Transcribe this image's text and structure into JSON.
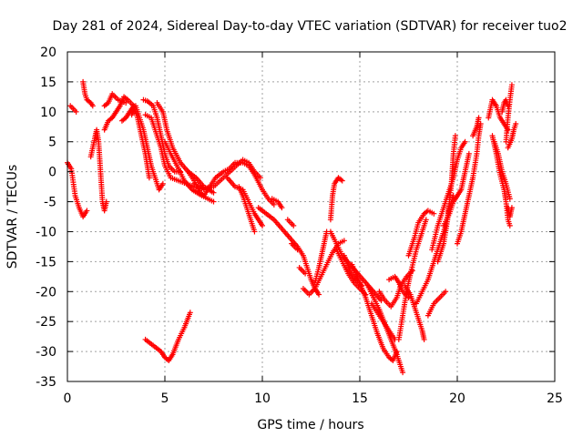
{
  "chart_data": {
    "type": "scatter",
    "title": "Day 281 of 2024, Sidereal Day-to-day VTEC variation (SDTVAR) for receiver tuo2",
    "xlabel": "GPS time / hours",
    "ylabel": "SDTVAR / TECUs",
    "xlim": [
      0,
      25
    ],
    "ylim": [
      -35,
      20
    ],
    "x_ticks": [
      0,
      5,
      10,
      15,
      20,
      25
    ],
    "y_ticks": [
      -35,
      -30,
      -25,
      -20,
      -15,
      -10,
      -5,
      0,
      5,
      10,
      15,
      20
    ],
    "grid": true,
    "marker": "+",
    "color": "#ff0000",
    "tracks": [
      [
        [
          0.0,
          1.5
        ],
        [
          0.2,
          0.5
        ],
        [
          0.4,
          -4.0
        ],
        [
          0.6,
          -6.0
        ],
        [
          0.8,
          -7.5
        ],
        [
          1.0,
          -6.5
        ]
      ],
      [
        [
          0.15,
          11.0
        ],
        [
          0.3,
          10.5
        ],
        [
          0.45,
          10.0
        ]
      ],
      [
        [
          0.8,
          15.0
        ],
        [
          0.9,
          13.0
        ],
        [
          1.0,
          12.0
        ],
        [
          1.2,
          11.5
        ],
        [
          1.3,
          11.0
        ]
      ],
      [
        [
          1.2,
          2.5
        ],
        [
          1.4,
          5.5
        ],
        [
          1.5,
          7.0
        ],
        [
          1.6,
          5.0
        ],
        [
          1.7,
          0.0
        ],
        [
          1.8,
          -5.0
        ],
        [
          1.9,
          -6.5
        ],
        [
          2.0,
          -5.0
        ]
      ],
      [
        [
          1.9,
          7.0
        ],
        [
          2.1,
          8.5
        ],
        [
          2.3,
          9.0
        ],
        [
          2.5,
          10.0
        ],
        [
          2.7,
          11.0
        ],
        [
          2.9,
          12.5
        ],
        [
          3.1,
          12.0
        ],
        [
          3.4,
          11.0
        ]
      ],
      [
        [
          1.9,
          11.0
        ],
        [
          2.1,
          11.5
        ],
        [
          2.3,
          13.0
        ],
        [
          2.6,
          12.0
        ],
        [
          3.0,
          11.5
        ]
      ],
      [
        [
          2.8,
          8.5
        ],
        [
          3.0,
          9.0
        ],
        [
          3.2,
          10.0
        ],
        [
          3.4,
          11.0
        ],
        [
          3.6,
          9.0
        ],
        [
          3.8,
          6.0
        ],
        [
          4.0,
          3.0
        ],
        [
          4.1,
          1.0
        ],
        [
          4.2,
          -1.0
        ]
      ],
      [
        [
          3.3,
          9.5
        ],
        [
          3.5,
          11.0
        ],
        [
          3.7,
          9.0
        ],
        [
          3.9,
          7.0
        ],
        [
          4.1,
          4.0
        ],
        [
          4.3,
          1.0
        ],
        [
          4.5,
          -1.0
        ],
        [
          4.7,
          -3.0
        ],
        [
          4.9,
          -2.0
        ]
      ],
      [
        [
          3.9,
          12.0
        ],
        [
          4.1,
          11.8
        ],
        [
          4.4,
          11.0
        ],
        [
          4.6,
          9.0
        ],
        [
          4.8,
          6.0
        ],
        [
          5.0,
          3.0
        ],
        [
          5.2,
          1.0
        ],
        [
          5.5,
          0.0
        ],
        [
          5.8,
          0.0
        ]
      ],
      [
        [
          4.0,
          9.5
        ],
        [
          4.3,
          9.0
        ],
        [
          4.5,
          7.0
        ],
        [
          4.8,
          4.0
        ],
        [
          5.0,
          1.0
        ],
        [
          5.3,
          -1.0
        ],
        [
          5.7,
          -1.5
        ],
        [
          6.1,
          -2.0
        ],
        [
          6.5,
          -2.5
        ],
        [
          7.0,
          -3.0
        ]
      ],
      [
        [
          4.6,
          11.5
        ],
        [
          4.9,
          10.0
        ],
        [
          5.1,
          7.0
        ],
        [
          5.4,
          4.0
        ],
        [
          5.8,
          1.5
        ],
        [
          6.2,
          0.0
        ],
        [
          6.6,
          -1.0
        ],
        [
          7.0,
          -2.5
        ],
        [
          7.5,
          -3.5
        ]
      ],
      [
        [
          5.0,
          5.0
        ],
        [
          5.3,
          3.0
        ],
        [
          5.7,
          0.5
        ],
        [
          6.0,
          -1.5
        ],
        [
          6.4,
          -3.0
        ],
        [
          6.9,
          -4.0
        ],
        [
          7.5,
          -5.0
        ]
      ],
      [
        [
          4.0,
          -28.0
        ],
        [
          4.4,
          -29.0
        ],
        [
          4.8,
          -30.0
        ],
        [
          5.0,
          -31.0
        ],
        [
          5.2,
          -31.5
        ],
        [
          5.4,
          -30.5
        ],
        [
          5.7,
          -28.0
        ],
        [
          6.0,
          -26.0
        ],
        [
          6.3,
          -23.5
        ]
      ],
      [
        [
          6.2,
          0.0
        ],
        [
          6.5,
          -1.5
        ],
        [
          6.8,
          -3.5
        ],
        [
          7.0,
          -4.0
        ],
        [
          7.3,
          -2.5
        ],
        [
          7.6,
          -1.0
        ],
        [
          8.0,
          0.0
        ],
        [
          8.3,
          0.5
        ],
        [
          8.6,
          1.5
        ],
        [
          9.0,
          1.5
        ],
        [
          9.3,
          1.0
        ],
        [
          9.6,
          -0.5
        ],
        [
          10.0,
          -3.0
        ],
        [
          10.3,
          -4.5
        ],
        [
          10.6,
          -5.5
        ]
      ],
      [
        [
          6.5,
          -2.0
        ],
        [
          7.0,
          -2.8
        ],
        [
          7.5,
          -2.5
        ],
        [
          8.0,
          -1.0
        ],
        [
          8.5,
          0.5
        ],
        [
          9.0,
          2.0
        ],
        [
          9.3,
          1.5
        ],
        [
          9.6,
          0.0
        ],
        [
          9.9,
          -1.0
        ]
      ],
      [
        [
          8.2,
          -1.0
        ],
        [
          8.6,
          -2.5
        ],
        [
          9.0,
          -3.0
        ],
        [
          9.3,
          -5.0
        ],
        [
          9.6,
          -7.0
        ],
        [
          9.8,
          -8.0
        ],
        [
          10.0,
          -9.0
        ]
      ],
      [
        [
          8.8,
          -2.5
        ],
        [
          9.0,
          -4.0
        ],
        [
          9.2,
          -6.0
        ],
        [
          9.4,
          -8.0
        ],
        [
          9.6,
          -10.0
        ]
      ],
      [
        [
          9.8,
          -6.0
        ],
        [
          10.2,
          -7.0
        ],
        [
          10.6,
          -8.0
        ],
        [
          11.0,
          -9.5
        ],
        [
          11.4,
          -11.0
        ],
        [
          11.8,
          -12.5
        ],
        [
          12.1,
          -14.0
        ],
        [
          12.3,
          -16.0
        ],
        [
          12.5,
          -18.0
        ],
        [
          12.7,
          -19.5
        ],
        [
          12.9,
          -20.5
        ]
      ],
      [
        [
          10.5,
          -4.5
        ],
        [
          10.8,
          -5.0
        ],
        [
          11.0,
          -6.0
        ]
      ],
      [
        [
          11.3,
          -8.0
        ],
        [
          11.6,
          -9.0
        ]
      ],
      [
        [
          11.5,
          -12.0
        ],
        [
          11.8,
          -13.0
        ]
      ],
      [
        [
          11.9,
          -16.0
        ],
        [
          12.2,
          -17.0
        ]
      ],
      [
        [
          12.1,
          -19.5
        ],
        [
          12.4,
          -20.5
        ],
        [
          12.7,
          -19.5
        ],
        [
          13.0,
          -17.5
        ],
        [
          13.3,
          -15.5
        ],
        [
          13.6,
          -13.5
        ],
        [
          13.9,
          -12.0
        ],
        [
          14.2,
          -11.5
        ]
      ],
      [
        [
          12.7,
          -18.5
        ],
        [
          12.9,
          -16.0
        ],
        [
          13.1,
          -13.0
        ],
        [
          13.3,
          -10.0
        ]
      ],
      [
        [
          13.5,
          -8.0
        ],
        [
          13.6,
          -4.0
        ],
        [
          13.7,
          -2.0
        ],
        [
          13.9,
          -1.0
        ],
        [
          14.1,
          -1.5
        ]
      ],
      [
        [
          13.5,
          -10.0
        ],
        [
          13.8,
          -12.0
        ],
        [
          14.1,
          -14.0
        ],
        [
          14.5,
          -15.5
        ],
        [
          14.9,
          -17.0
        ],
        [
          15.3,
          -18.5
        ],
        [
          15.7,
          -20.0
        ],
        [
          16.1,
          -21.5
        ]
      ],
      [
        [
          13.8,
          -13.0
        ],
        [
          14.1,
          -15.0
        ],
        [
          14.4,
          -17.0
        ],
        [
          14.7,
          -18.5
        ],
        [
          15.0,
          -19.5
        ],
        [
          15.3,
          -20.5
        ]
      ],
      [
        [
          14.2,
          -14.0
        ],
        [
          14.5,
          -16.5
        ],
        [
          14.8,
          -18.0
        ],
        [
          15.1,
          -19.0
        ]
      ],
      [
        [
          14.6,
          -15.5
        ],
        [
          15.0,
          -18.5
        ],
        [
          15.3,
          -21.0
        ],
        [
          15.6,
          -24.0
        ],
        [
          15.9,
          -27.0
        ],
        [
          16.2,
          -29.5
        ],
        [
          16.5,
          -31.0
        ],
        [
          16.7,
          -31.5
        ],
        [
          16.9,
          -30.0
        ]
      ],
      [
        [
          15.4,
          -19.0
        ],
        [
          15.7,
          -21.0
        ],
        [
          16.0,
          -23.0
        ],
        [
          16.3,
          -25.5
        ],
        [
          16.6,
          -28.0
        ],
        [
          16.9,
          -30.5
        ],
        [
          17.1,
          -32.5
        ],
        [
          17.2,
          -33.5
        ]
      ],
      [
        [
          15.6,
          -22.0
        ],
        [
          15.9,
          -23.5
        ],
        [
          16.2,
          -25.0
        ],
        [
          16.5,
          -26.5
        ],
        [
          16.8,
          -28.0
        ]
      ],
      [
        [
          16.0,
          -20.0
        ],
        [
          16.3,
          -21.5
        ],
        [
          16.6,
          -22.5
        ],
        [
          16.9,
          -21.0
        ],
        [
          17.1,
          -19.0
        ],
        [
          17.4,
          -17.5
        ],
        [
          17.7,
          -16.5
        ]
      ],
      [
        [
          16.5,
          -18.0
        ],
        [
          16.8,
          -17.5
        ],
        [
          17.0,
          -18.5
        ],
        [
          17.2,
          -20.0
        ],
        [
          17.5,
          -21.0
        ]
      ],
      [
        [
          17.0,
          -28.0
        ],
        [
          17.2,
          -24.0
        ],
        [
          17.4,
          -20.0
        ],
        [
          17.6,
          -17.0
        ],
        [
          17.9,
          -13.0
        ],
        [
          18.2,
          -10.0
        ],
        [
          18.4,
          -8.0
        ]
      ],
      [
        [
          17.3,
          -19.0
        ],
        [
          17.6,
          -20.5
        ],
        [
          17.8,
          -22.5
        ],
        [
          18.0,
          -24.5
        ],
        [
          18.2,
          -26.5
        ],
        [
          18.3,
          -28.0
        ]
      ],
      [
        [
          17.5,
          -14.0
        ],
        [
          17.8,
          -11.0
        ],
        [
          18.0,
          -8.5
        ],
        [
          18.3,
          -7.0
        ],
        [
          18.5,
          -6.5
        ],
        [
          18.8,
          -7.0
        ]
      ],
      [
        [
          17.9,
          -22.0
        ],
        [
          18.2,
          -20.0
        ],
        [
          18.5,
          -18.0
        ],
        [
          18.8,
          -15.0
        ],
        [
          19.1,
          -12.0
        ],
        [
          19.4,
          -9.0
        ],
        [
          19.6,
          -6.0
        ],
        [
          19.8,
          -4.0
        ]
      ],
      [
        [
          18.5,
          -24.0
        ],
        [
          18.8,
          -22.0
        ],
        [
          19.1,
          -21.0
        ],
        [
          19.4,
          -20.0
        ]
      ],
      [
        [
          18.7,
          -13.0
        ],
        [
          19.0,
          -9.0
        ],
        [
          19.3,
          -6.0
        ],
        [
          19.6,
          -3.0
        ],
        [
          19.8,
          -1.0
        ],
        [
          20.0,
          2.0
        ],
        [
          20.2,
          4.0
        ],
        [
          20.4,
          5.0
        ]
      ],
      [
        [
          19.3,
          -9.0
        ],
        [
          19.6,
          -7.0
        ],
        [
          19.8,
          -5.0
        ],
        [
          20.0,
          -4.0
        ],
        [
          20.2,
          -3.0
        ],
        [
          20.4,
          0.0
        ],
        [
          20.6,
          3.0
        ]
      ],
      [
        [
          19.0,
          -15.0
        ],
        [
          19.3,
          -12.0
        ],
        [
          19.5,
          -8.0
        ],
        [
          19.7,
          -2.0
        ],
        [
          19.8,
          3.0
        ],
        [
          19.9,
          6.0
        ]
      ],
      [
        [
          20.0,
          -12.0
        ],
        [
          20.2,
          -10.0
        ],
        [
          20.4,
          -7.0
        ],
        [
          20.6,
          -4.0
        ],
        [
          20.8,
          -1.0
        ],
        [
          21.0,
          3.0
        ],
        [
          21.1,
          6.0
        ],
        [
          21.2,
          8.0
        ]
      ],
      [
        [
          20.8,
          6.0
        ],
        [
          21.0,
          7.5
        ],
        [
          21.1,
          9.0
        ]
      ],
      [
        [
          21.6,
          9.0
        ],
        [
          21.8,
          12.0
        ],
        [
          22.0,
          11.0
        ],
        [
          22.2,
          9.0
        ],
        [
          22.4,
          8.0
        ],
        [
          22.6,
          7.0
        ]
      ],
      [
        [
          21.9,
          5.0
        ],
        [
          22.1,
          3.0
        ],
        [
          22.3,
          0.0
        ],
        [
          22.5,
          -2.0
        ],
        [
          22.7,
          -4.5
        ]
      ],
      [
        [
          21.8,
          6.0
        ],
        [
          22.0,
          3.0
        ],
        [
          22.2,
          -0.5
        ],
        [
          22.4,
          -3.0
        ],
        [
          22.5,
          -5.0
        ],
        [
          22.6,
          -8.0
        ],
        [
          22.7,
          -9.0
        ]
      ],
      [
        [
          22.5,
          5.0
        ],
        [
          22.6,
          9.0
        ],
        [
          22.7,
          12.0
        ],
        [
          22.8,
          14.5
        ]
      ],
      [
        [
          22.6,
          -6.0
        ],
        [
          22.7,
          -7.5
        ],
        [
          22.8,
          -6.0
        ]
      ],
      [
        [
          22.6,
          4.0
        ],
        [
          22.8,
          5.5
        ],
        [
          22.9,
          7.0
        ],
        [
          23.0,
          8.0
        ]
      ],
      [
        [
          22.3,
          10.0
        ],
        [
          22.4,
          11.5
        ],
        [
          22.5,
          12.0
        ],
        [
          22.6,
          11.0
        ]
      ]
    ]
  }
}
